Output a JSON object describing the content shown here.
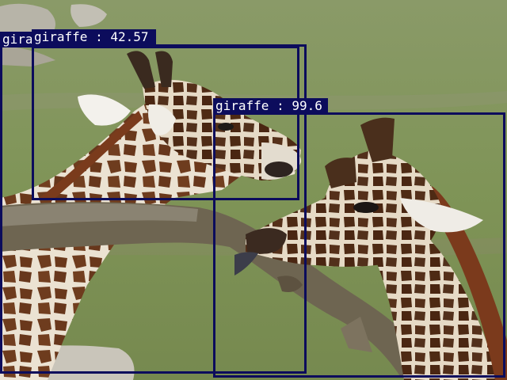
{
  "detections": [
    {
      "label": "gira",
      "label_full": "giraffe",
      "score": "",
      "caption": "gira"
    },
    {
      "label": "giraffe",
      "score": "42.57",
      "caption": "giraffe : 42.57"
    },
    {
      "label": "giraffe",
      "score": "99.6",
      "caption": "giraffe : 99.6"
    }
  ],
  "colors": {
    "box": "#0c0c5c",
    "label_text": "#ffffff",
    "grass": "#7d8f55",
    "giraffe_patch": "#6b3a1e",
    "giraffe_base": "#e8dcc8"
  }
}
